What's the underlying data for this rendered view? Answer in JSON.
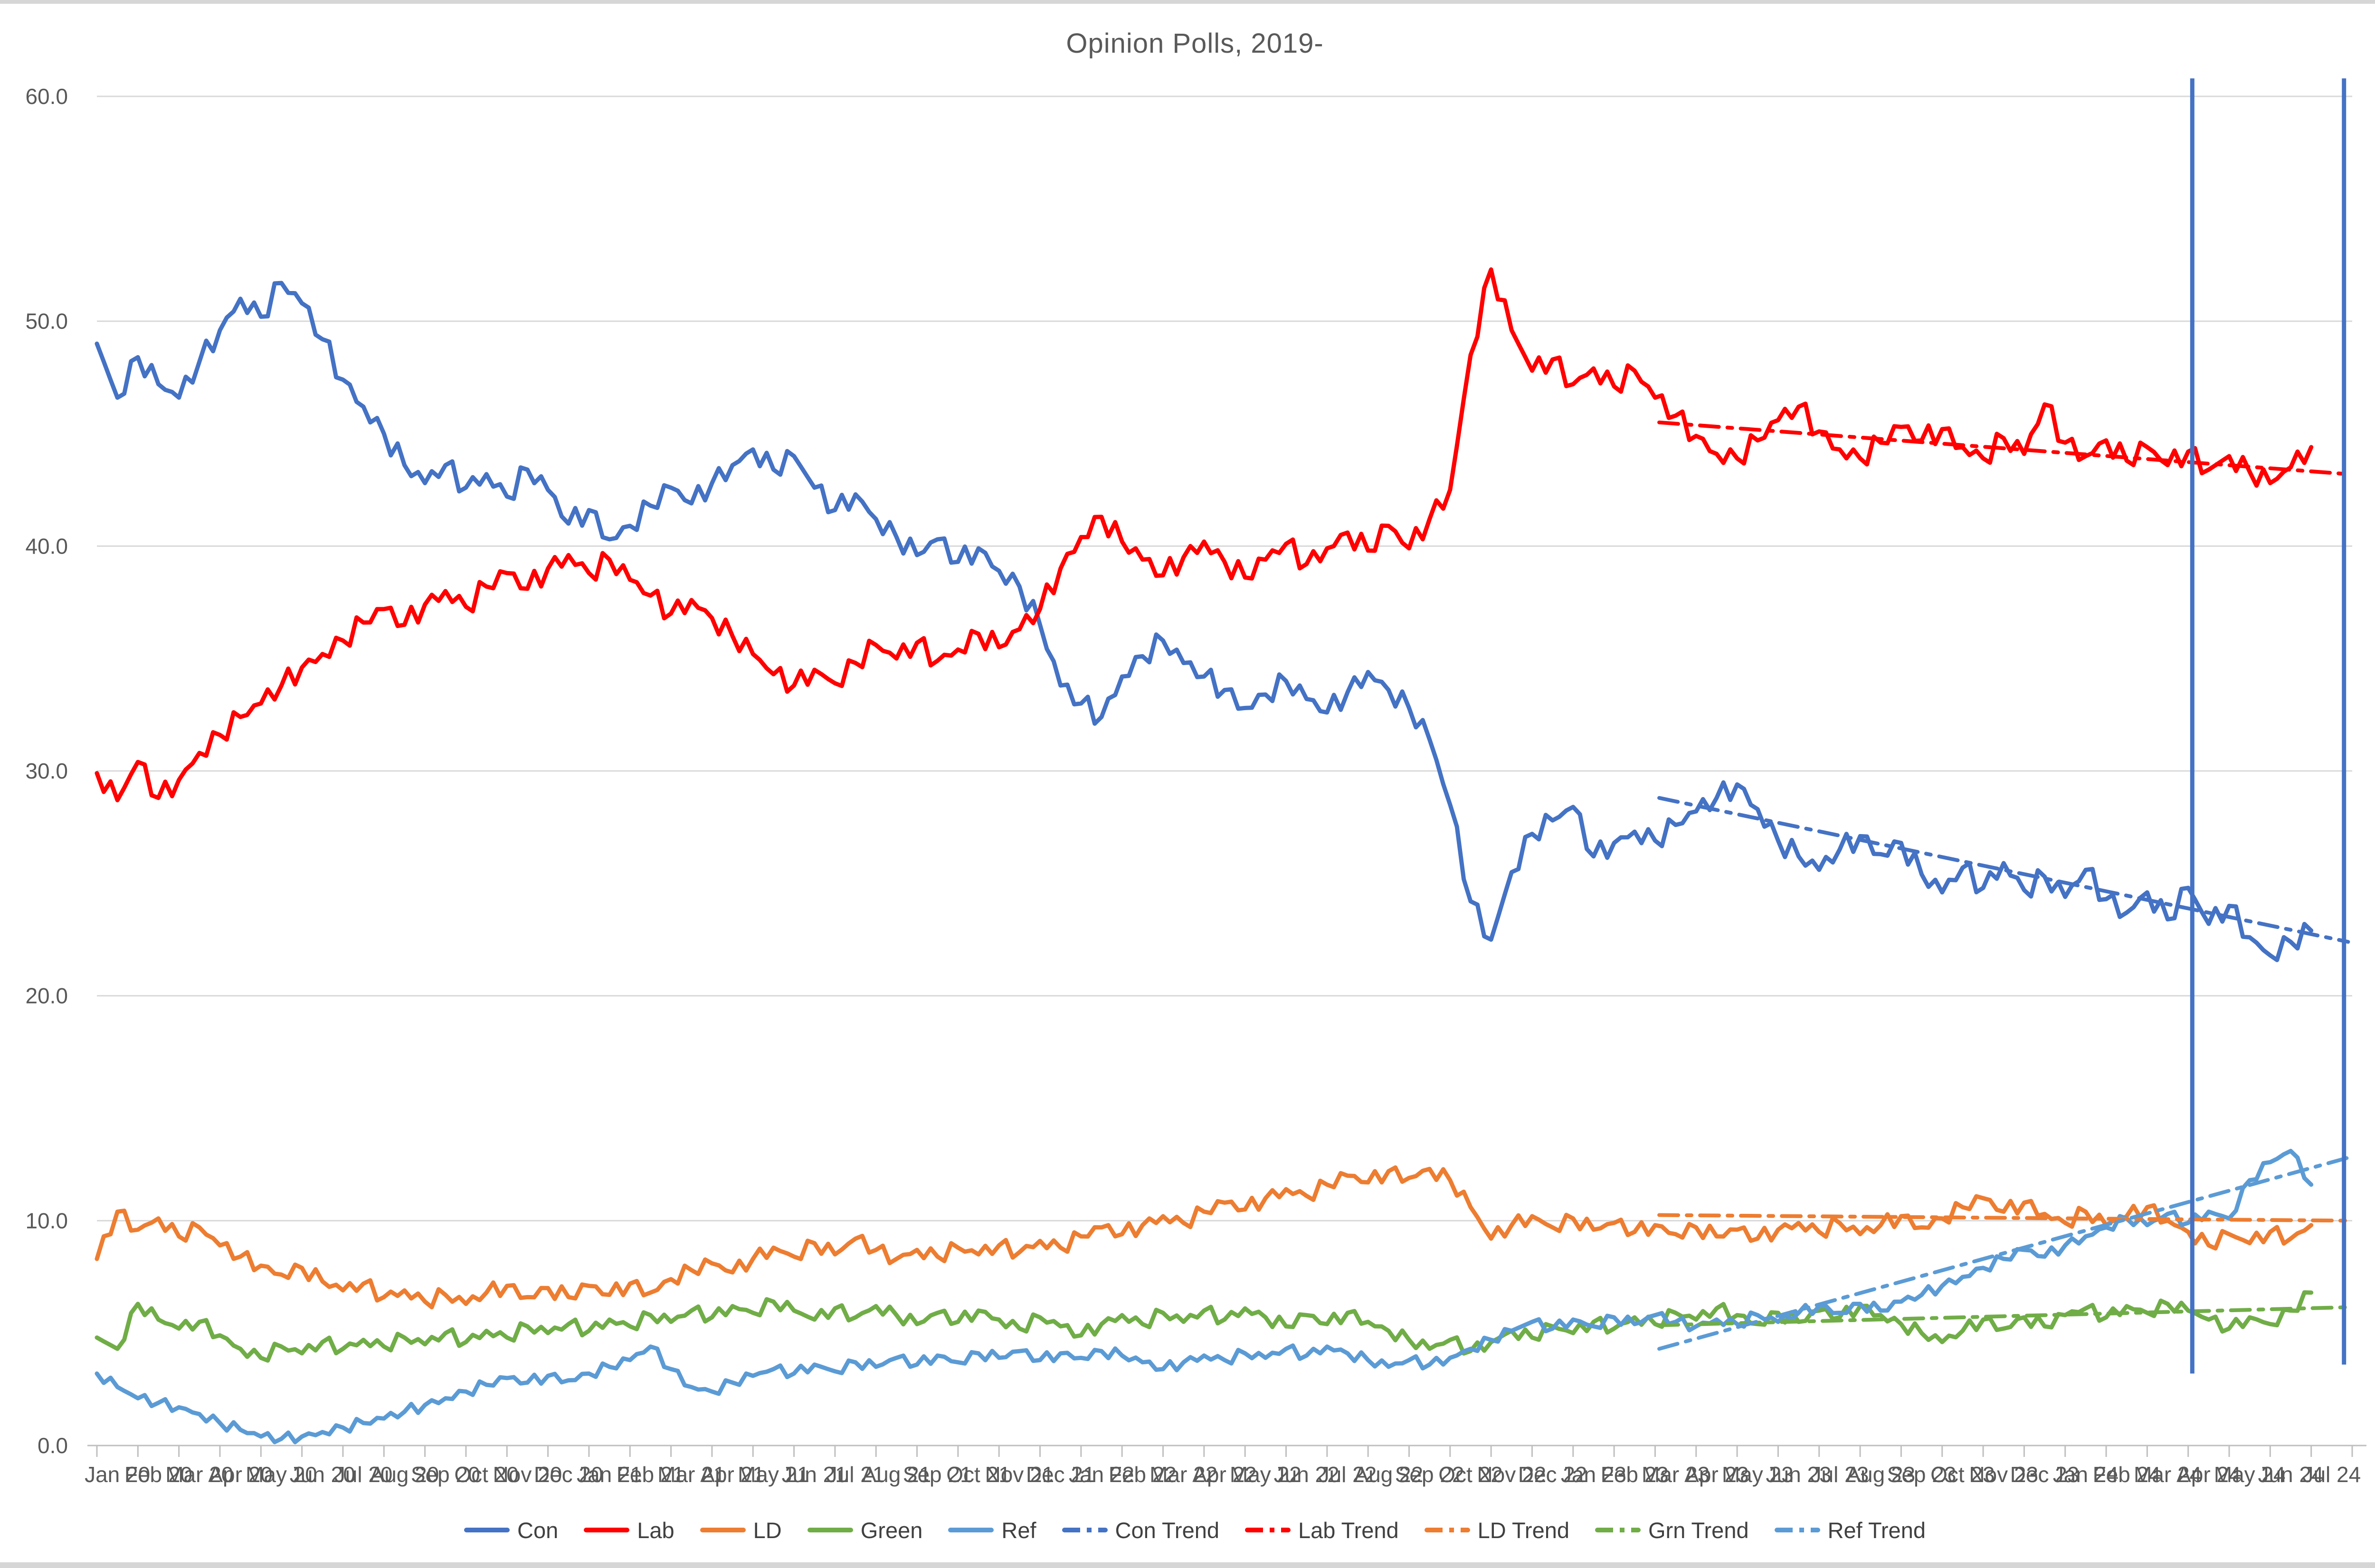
{
  "title": "Opinion Polls, 2019-",
  "chart_data": {
    "type": "line",
    "title": "Opinion Polls, 2019-",
    "xlabel": "",
    "ylabel": "",
    "ylim": [
      0,
      60
    ],
    "y_ticks": [
      0,
      10,
      20,
      30,
      40,
      50,
      60
    ],
    "y_tick_labels": [
      "0.0",
      "10.0",
      "20.0",
      "30.0",
      "40.0",
      "50.0",
      "60.0"
    ],
    "grid": "horizontal",
    "legend_position": "bottom",
    "x_unit": "months since Jan 2020",
    "xlim_months": [
      0,
      55
    ],
    "x_tick_labels": [
      "Jan 20",
      "Feb 20",
      "Mar 20",
      "Apr 20",
      "May 20",
      "Jun 20",
      "Jul 20",
      "Aug 20",
      "Sep 20",
      "Oct 20",
      "Nov 20",
      "Dec 20",
      "Jan 21",
      "Feb 21",
      "Mar 21",
      "Apr 21",
      "May 21",
      "Jun 21",
      "Jul 21",
      "Aug 21",
      "Sep 21",
      "Oct 21",
      "Nov 21",
      "Dec 21",
      "Jan 22",
      "Feb 22",
      "Mar 22",
      "Apr 22",
      "May 22",
      "Jun 22",
      "Jul 22",
      "Aug 22",
      "Sep 22",
      "Oct 22",
      "Nov 22",
      "Dec 22",
      "Jan 23",
      "Feb 23",
      "Mar 23",
      "Apr 23",
      "May 23",
      "Jun 23",
      "Jul 23",
      "Aug 23",
      "Sep 23",
      "Oct 23",
      "Nov 23",
      "Dec 23",
      "Jan 24",
      "Feb 24",
      "Mar 24",
      "Apr 24",
      "May 24",
      "Jun 24",
      "Jul 24"
    ],
    "x_months": [
      0,
      0.5,
      1,
      1.5,
      2,
      2.5,
      3,
      3.5,
      4,
      4.5,
      5,
      5.5,
      6,
      6.5,
      7,
      7.5,
      8,
      8.5,
      9,
      9.5,
      10,
      10.5,
      11,
      11.5,
      12,
      12.5,
      13,
      13.5,
      14,
      14.5,
      15,
      15.5,
      16,
      16.5,
      17,
      17.5,
      18,
      18.5,
      19,
      19.5,
      20,
      20.5,
      21,
      21.5,
      22,
      22.5,
      23,
      23.5,
      24,
      24.5,
      25,
      25.5,
      26,
      26.5,
      27,
      27.5,
      28,
      28.5,
      29,
      29.5,
      30,
      30.5,
      31,
      31.5,
      32,
      32.5,
      33,
      33.5,
      34,
      34.5,
      35,
      35.5,
      36,
      36.5,
      37,
      37.5,
      38,
      38.5,
      39,
      39.5,
      40,
      40.5,
      41,
      41.5,
      42,
      42.5,
      43,
      43.5,
      44,
      44.5,
      45,
      45.5,
      46,
      46.5,
      47,
      47.5,
      48,
      48.5,
      49,
      49.5,
      50,
      50.5,
      51,
      51.5,
      52,
      52.5,
      53,
      53.5,
      54
    ],
    "series": [
      {
        "name": "Con",
        "color": "#4472C4",
        "style": "solid",
        "values": [
          49.0,
          46.6,
          48.4,
          47.2,
          46.6,
          48.2,
          49.6,
          51.0,
          50.2,
          51.7,
          50.8,
          49.2,
          47.4,
          46.2,
          45.0,
          43.6,
          42.8,
          43.6,
          42.6,
          43.2,
          42.2,
          43.4,
          42.5,
          41.0,
          41.6,
          40.3,
          40.9,
          41.8,
          42.6,
          41.9,
          42.8,
          43.6,
          44.3,
          43.4,
          44.0,
          42.6,
          41.6,
          42.3,
          41.2,
          40.4,
          39.6,
          40.3,
          39.3,
          39.9,
          38.9,
          38.2,
          36.5,
          33.8,
          33.0,
          32.4,
          34.2,
          35.1,
          35.8,
          34.8,
          34.2,
          33.6,
          32.8,
          33.4,
          34.0,
          33.2,
          32.6,
          33.5,
          34.4,
          33.6,
          32.8,
          31.4,
          28.5,
          24.2,
          22.5,
          25.5,
          27.2,
          27.8,
          28.4,
          26.2,
          26.8,
          27.3,
          26.9,
          27.6,
          28.2,
          28.8,
          29.4,
          28.3,
          26.9,
          26.2,
          25.6,
          26.5,
          27.1,
          26.3,
          26.8,
          25.4,
          24.6,
          25.7,
          24.8,
          25.9,
          24.7,
          25.3,
          24.4,
          25.6,
          24.3,
          23.7,
          24.6,
          23.4,
          24.8,
          23.2,
          24.0,
          22.6,
          21.8,
          22.4,
          22.9
        ]
      },
      {
        "name": "Lab",
        "color": "#FF0000",
        "style": "solid",
        "values": [
          29.9,
          28.7,
          30.4,
          28.8,
          29.6,
          30.8,
          31.6,
          32.4,
          33.0,
          33.8,
          34.6,
          35.2,
          35.8,
          36.6,
          37.2,
          36.5,
          37.4,
          38.0,
          37.3,
          38.2,
          38.8,
          38.1,
          39.0,
          39.6,
          38.8,
          39.4,
          38.5,
          37.8,
          37.0,
          37.6,
          36.8,
          36.0,
          35.2,
          34.3,
          33.8,
          34.5,
          33.9,
          34.8,
          35.6,
          35.0,
          35.7,
          34.9,
          35.4,
          36.1,
          35.5,
          36.3,
          37.2,
          39.0,
          40.4,
          41.3,
          40.2,
          39.4,
          38.7,
          39.5,
          40.2,
          39.3,
          38.6,
          39.4,
          40.1,
          39.2,
          39.9,
          40.6,
          39.8,
          40.9,
          39.9,
          41.2,
          42.5,
          48.5,
          52.3,
          49.6,
          47.8,
          48.3,
          47.2,
          47.9,
          47.1,
          47.8,
          46.6,
          45.8,
          44.9,
          44.1,
          43.9,
          44.7,
          45.6,
          46.2,
          45.1,
          44.3,
          43.9,
          44.6,
          45.3,
          44.7,
          45.2,
          44.4,
          43.9,
          44.8,
          44.1,
          46.3,
          44.6,
          44.0,
          44.7,
          43.8,
          44.4,
          43.6,
          44.2,
          43.4,
          44.0,
          43.3,
          42.8,
          43.5,
          44.4
        ]
      },
      {
        "name": "LD",
        "color": "#ED7D31",
        "style": "solid",
        "values": [
          8.3,
          10.4,
          9.6,
          10.1,
          9.3,
          9.7,
          8.9,
          8.4,
          8.0,
          7.6,
          7.9,
          7.3,
          6.9,
          7.2,
          6.6,
          6.9,
          6.4,
          6.7,
          6.3,
          6.8,
          7.1,
          6.6,
          7.0,
          6.6,
          7.1,
          6.7,
          7.2,
          6.8,
          7.4,
          7.8,
          8.1,
          7.7,
          8.3,
          8.8,
          8.4,
          9.0,
          8.5,
          9.2,
          8.7,
          8.3,
          8.7,
          8.4,
          8.8,
          8.5,
          8.9,
          8.6,
          9.1,
          8.8,
          9.3,
          9.7,
          9.4,
          9.8,
          10.2,
          9.9,
          10.4,
          10.8,
          10.5,
          11.0,
          11.4,
          11.1,
          11.6,
          12.0,
          11.7,
          12.2,
          11.9,
          12.3,
          11.8,
          10.6,
          9.2,
          9.8,
          10.2,
          9.7,
          10.1,
          9.6,
          9.9,
          9.5,
          9.8,
          9.4,
          9.7,
          9.3,
          9.6,
          9.2,
          9.6,
          9.9,
          9.5,
          9.9,
          9.4,
          9.8,
          10.2,
          9.7,
          10.1,
          10.6,
          11.0,
          10.4,
          10.8,
          10.3,
          9.9,
          10.4,
          9.8,
          10.2,
          10.6,
          10.0,
          9.5,
          8.9,
          9.4,
          9.0,
          9.5,
          9.2,
          9.8
        ]
      },
      {
        "name": "Green",
        "color": "#70AD47",
        "style": "solid",
        "values": [
          4.8,
          4.3,
          6.3,
          5.6,
          5.2,
          5.5,
          4.9,
          4.3,
          3.9,
          4.4,
          4.1,
          4.6,
          4.3,
          4.7,
          4.4,
          4.8,
          4.5,
          5.0,
          4.6,
          5.1,
          4.8,
          5.3,
          5.0,
          5.4,
          5.1,
          5.6,
          5.3,
          5.8,
          5.5,
          6.0,
          5.7,
          6.2,
          5.9,
          6.4,
          6.0,
          5.6,
          6.1,
          5.7,
          6.2,
          5.8,
          5.4,
          5.9,
          5.5,
          6.0,
          5.6,
          5.2,
          5.7,
          5.3,
          4.9,
          5.4,
          5.8,
          5.4,
          5.9,
          5.5,
          6.0,
          5.6,
          6.1,
          5.7,
          5.3,
          5.8,
          5.4,
          5.9,
          5.5,
          5.1,
          4.7,
          4.3,
          4.7,
          4.2,
          4.6,
          5.1,
          4.8,
          5.3,
          5.0,
          5.5,
          5.2,
          5.7,
          5.4,
          5.9,
          5.6,
          6.1,
          5.8,
          5.4,
          5.9,
          5.5,
          6.0,
          5.7,
          6.2,
          5.8,
          5.4,
          5.0,
          4.6,
          5.1,
          5.6,
          5.2,
          5.7,
          5.3,
          5.8,
          6.1,
          5.7,
          6.2,
          5.9,
          6.3,
          6.0,
          5.6,
          5.2,
          5.7,
          5.4,
          6.0,
          6.8
        ]
      },
      {
        "name": "Ref",
        "color": "#5B9BD5",
        "style": "solid",
        "values": [
          3.2,
          2.6,
          2.1,
          1.9,
          1.7,
          1.4,
          1.0,
          0.7,
          0.4,
          0.3,
          0.4,
          0.6,
          0.8,
          1.0,
          1.2,
          1.5,
          1.8,
          2.1,
          2.4,
          2.7,
          3.0,
          2.8,
          3.1,
          2.9,
          3.2,
          3.5,
          3.8,
          4.4,
          3.4,
          2.6,
          2.4,
          2.8,
          3.1,
          3.4,
          3.2,
          3.6,
          3.3,
          3.7,
          3.5,
          3.9,
          3.6,
          4.0,
          3.7,
          4.1,
          3.9,
          4.2,
          3.8,
          4.1,
          3.9,
          4.2,
          4.0,
          3.7,
          3.4,
          3.7,
          4.0,
          3.8,
          4.1,
          3.9,
          4.3,
          4.0,
          4.4,
          4.1,
          3.8,
          3.5,
          3.8,
          3.6,
          3.9,
          4.3,
          4.7,
          5.1,
          5.5,
          5.2,
          5.6,
          5.3,
          5.7,
          5.4,
          5.8,
          5.5,
          5.3,
          5.6,
          5.4,
          5.8,
          5.5,
          5.9,
          6.2,
          5.9,
          6.3,
          6.0,
          6.4,
          6.7,
          7.1,
          7.5,
          7.9,
          8.3,
          8.7,
          8.4,
          8.9,
          9.3,
          9.7,
          10.1,
          9.8,
          10.3,
          9.9,
          10.4,
          10.1,
          11.8,
          12.6,
          13.1,
          11.6
        ]
      }
    ],
    "trend_series": [
      {
        "name": "Con Trend",
        "color": "#4472C4",
        "style": "dash-dot",
        "x": [
          38.1,
          54.9
        ],
        "values": [
          28.8,
          22.4
        ]
      },
      {
        "name": "Lab Trend",
        "color": "#FF0000",
        "style": "dash-dot",
        "x": [
          38.1,
          54.9
        ],
        "values": [
          45.5,
          43.2
        ]
      },
      {
        "name": "LD Trend",
        "color": "#ED7D31",
        "style": "dash-dot",
        "x": [
          38.1,
          54.9
        ],
        "values": [
          10.25,
          10.0
        ]
      },
      {
        "name": "Grn Trend",
        "color": "#70AD47",
        "style": "dash-dot",
        "x": [
          38.1,
          54.9
        ],
        "values": [
          5.35,
          6.15
        ]
      },
      {
        "name": "Ref Trend",
        "color": "#5B9BD5",
        "style": "dash-dot",
        "x": [
          38.1,
          54.9
        ],
        "values": [
          4.3,
          12.8
        ]
      }
    ],
    "vertical_markers": [
      {
        "x_month": 51.1,
        "y_from": 3.2,
        "y_to": 60.8,
        "color": "#4472C4"
      },
      {
        "x_month": 54.8,
        "y_from": 3.6,
        "y_to": 60.8,
        "color": "#4472C4"
      }
    ],
    "style": {
      "grid_color": "#D9D9D9",
      "axis_color": "#BFBFBF",
      "tick_label_color": "#595959",
      "title_color": "#595959",
      "legend_text_color": "#404040",
      "jitter": {
        "Con": 0.5,
        "Lab": 0.5,
        "LD": 0.35,
        "Green": 0.3,
        "Ref": 0.25
      }
    }
  }
}
